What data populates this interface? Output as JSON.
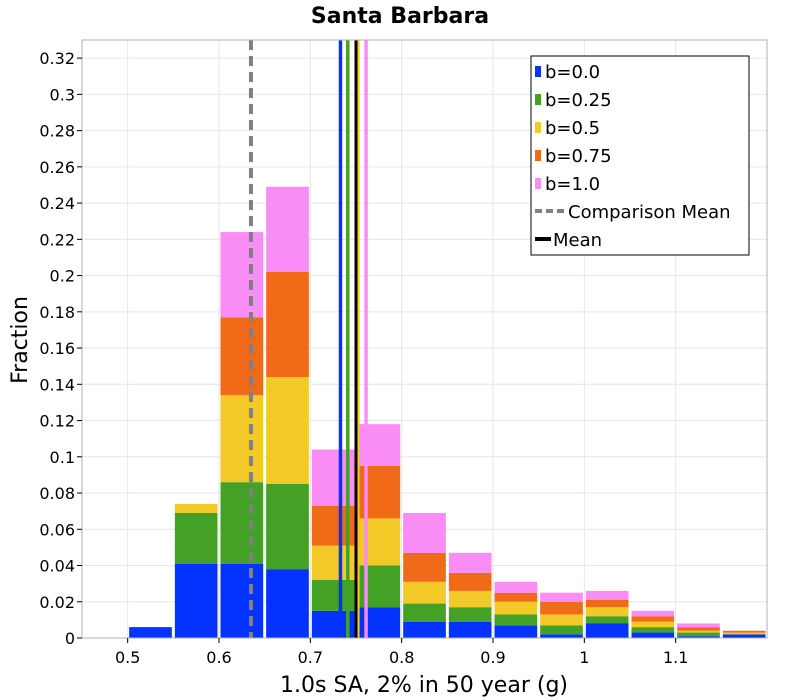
{
  "chart_data": {
    "type": "bar",
    "stacked": true,
    "title": "Santa Barbara",
    "xlabel": "1.0s SA, 2% in 50 year (g)",
    "ylabel": "Fraction",
    "xlim": [
      0.45,
      1.2
    ],
    "ylim": [
      0,
      0.33
    ],
    "grid": true,
    "legend_position": "top-right",
    "x_ticks": [
      {
        "v": 0.5,
        "label": "0.5"
      },
      {
        "v": 0.6,
        "label": "0.6"
      },
      {
        "v": 0.7,
        "label": "0.7"
      },
      {
        "v": 0.8,
        "label": "0.8"
      },
      {
        "v": 0.9,
        "label": "0.9"
      },
      {
        "v": 1.0,
        "label": "1"
      },
      {
        "v": 1.1,
        "label": "1.1"
      }
    ],
    "y_ticks": [
      {
        "v": 0,
        "label": "0"
      },
      {
        "v": 0.02,
        "label": "0.02"
      },
      {
        "v": 0.04,
        "label": "0.04"
      },
      {
        "v": 0.06,
        "label": "0.06"
      },
      {
        "v": 0.08,
        "label": "0.08"
      },
      {
        "v": 0.1,
        "label": "0.1"
      },
      {
        "v": 0.12,
        "label": "0.12"
      },
      {
        "v": 0.14,
        "label": "0.14"
      },
      {
        "v": 0.16,
        "label": "0.16"
      },
      {
        "v": 0.18,
        "label": "0.18"
      },
      {
        "v": 0.2,
        "label": "0.2"
      },
      {
        "v": 0.22,
        "label": "0.22"
      },
      {
        "v": 0.24,
        "label": "0.24"
      },
      {
        "v": 0.26,
        "label": "0.26"
      },
      {
        "v": 0.28,
        "label": "0.28"
      },
      {
        "v": 0.3,
        "label": "0.3"
      },
      {
        "v": 0.32,
        "label": "0.32"
      }
    ],
    "bins": [
      {
        "x0": 0.5,
        "x1": 0.55
      },
      {
        "x0": 0.55,
        "x1": 0.6
      },
      {
        "x0": 0.6,
        "x1": 0.65
      },
      {
        "x0": 0.65,
        "x1": 0.7
      },
      {
        "x0": 0.7,
        "x1": 0.75
      },
      {
        "x0": 0.75,
        "x1": 0.8
      },
      {
        "x0": 0.8,
        "x1": 0.85
      },
      {
        "x0": 0.85,
        "x1": 0.9
      },
      {
        "x0": 0.9,
        "x1": 0.95
      },
      {
        "x0": 0.95,
        "x1": 1.0
      },
      {
        "x0": 1.0,
        "x1": 1.05
      },
      {
        "x0": 1.05,
        "x1": 1.1
      },
      {
        "x0": 1.1,
        "x1": 1.15
      },
      {
        "x0": 1.15,
        "x1": 1.2
      }
    ],
    "series": [
      {
        "name": "b=0.0",
        "color": "#0433ff",
        "values": [
          0.006,
          0.041,
          0.041,
          0.038,
          0.015,
          0.017,
          0.009,
          0.009,
          0.007,
          0.002,
          0.008,
          0.003,
          0.001,
          0.002
        ]
      },
      {
        "name": "b=0.25",
        "color": "#43a126",
        "values": [
          0.0,
          0.028,
          0.045,
          0.047,
          0.017,
          0.023,
          0.01,
          0.008,
          0.006,
          0.005,
          0.004,
          0.003,
          0.002,
          0.0
        ]
      },
      {
        "name": "b=0.5",
        "color": "#f2c926",
        "values": [
          0.0,
          0.005,
          0.048,
          0.059,
          0.019,
          0.026,
          0.012,
          0.009,
          0.007,
          0.006,
          0.005,
          0.003,
          0.001,
          0.001
        ]
      },
      {
        "name": "b=0.75",
        "color": "#f06a18",
        "values": [
          0.0,
          0.0,
          0.043,
          0.058,
          0.022,
          0.029,
          0.016,
          0.01,
          0.005,
          0.007,
          0.004,
          0.003,
          0.002,
          0.001
        ]
      },
      {
        "name": "b=1.0",
        "color": "#fa8cf5",
        "values": [
          0.0,
          0.0,
          0.047,
          0.047,
          0.031,
          0.023,
          0.022,
          0.011,
          0.006,
          0.005,
          0.005,
          0.003,
          0.002,
          0.0
        ]
      }
    ],
    "comparison_mean": {
      "name": "Comparison Mean",
      "x": 0.635,
      "color": "#808080"
    },
    "mean": {
      "name": "Mean",
      "x": 0.75,
      "color": "#000000"
    },
    "series_means": [
      {
        "series": "b=0.0",
        "x": 0.733,
        "color": "#0433ff"
      },
      {
        "series": "b=0.25",
        "x": 0.741,
        "color": "#43a126"
      },
      {
        "series": "b=0.5",
        "x": 0.752,
        "color": "#f2c926"
      },
      {
        "series": "b=1.0",
        "x": 0.761,
        "color": "#fa8cf5"
      }
    ]
  }
}
